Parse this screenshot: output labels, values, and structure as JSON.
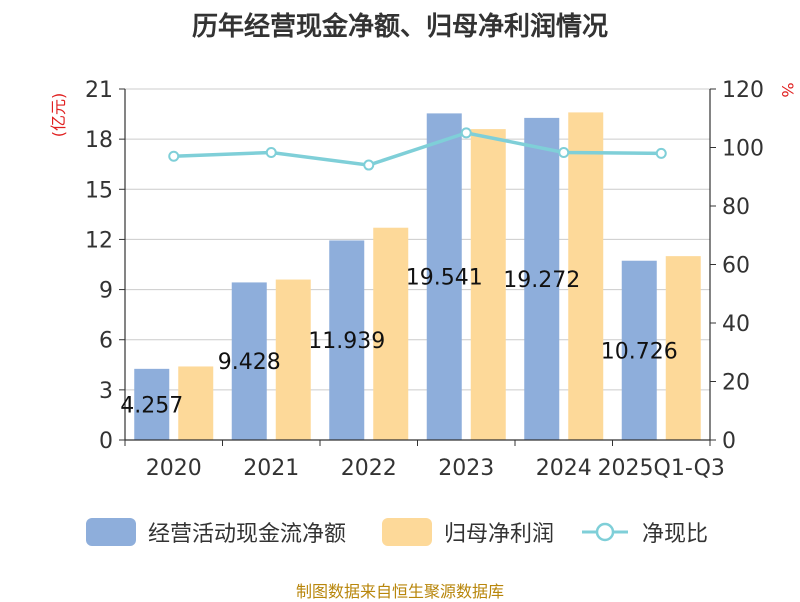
{
  "title": "历年经营现金净额、归母净利润情况",
  "source": "制图数据来自恒生聚源数据库",
  "chart_data": {
    "type": "bar",
    "categories": [
      "2020",
      "2021",
      "2022",
      "2023",
      "2024",
      "2025Q1-Q3"
    ],
    "left_axis": {
      "label": "(亿元)",
      "ylim": [
        0,
        21
      ],
      "ticks": [
        "0",
        "3",
        "6",
        "9",
        "12",
        "15",
        "18",
        "21"
      ]
    },
    "right_axis": {
      "label": "%",
      "ylim": [
        0,
        120
      ],
      "ticks": [
        "0",
        "20",
        "40",
        "60",
        "80",
        "100",
        "120"
      ]
    },
    "series": [
      {
        "name": "经营活动现金流净额",
        "type": "bar",
        "axis": "left",
        "color": "#8eaedb",
        "values": [
          4.257,
          9.428,
          11.939,
          19.541,
          19.272,
          10.726
        ],
        "data_labels": [
          "4.257",
          "9.428",
          "11.939",
          "19.541",
          "19.272",
          "10.726"
        ]
      },
      {
        "name": "归母净利润",
        "type": "bar",
        "axis": "left",
        "color": "#fdd999",
        "values": [
          4.4,
          9.6,
          12.7,
          18.6,
          19.6,
          11.0
        ]
      },
      {
        "name": "净现比",
        "type": "line",
        "axis": "right",
        "color": "#7fcfd8",
        "values": [
          97,
          98.3,
          94,
          105,
          98.3,
          98
        ]
      }
    ],
    "grid": true,
    "legend_position": "bottom"
  }
}
